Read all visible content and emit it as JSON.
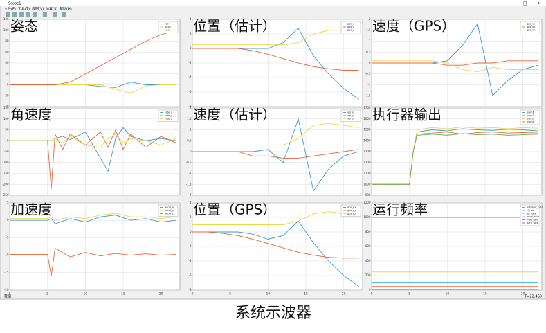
{
  "window": {
    "title": "Scope1",
    "menu": [
      "文件(F)",
      "工具(T)",
      "视图(V)",
      "仿真(S)",
      "帮助(H)"
    ],
    "status_left": "就绪",
    "status_right": "T=22.469"
  },
  "caption": "系统示波器",
  "chart_data": [
    {
      "type": "line",
      "title": "姿态",
      "x": [
        0,
        2,
        4,
        6,
        8,
        10,
        12,
        14,
        16,
        18,
        20,
        22
      ],
      "xlim": [
        0,
        22.5
      ],
      "xticks": [
        0,
        5,
        10,
        15,
        20
      ],
      "ylim": [
        -40,
        120
      ],
      "yticks": [
        -40,
        -20,
        0,
        20,
        40,
        60,
        80,
        100,
        120
      ],
      "grid": true,
      "series": [
        {
          "name": "roll",
          "color": "#3a9ad9",
          "values": [
            0,
            0,
            0,
            0,
            0,
            0,
            -3,
            -5,
            5,
            0,
            0,
            0
          ]
        },
        {
          "name": "pitch",
          "color": "#e8d94a",
          "values": [
            0,
            0,
            0,
            0,
            0,
            0,
            0,
            -8,
            -15,
            -2,
            0,
            0
          ]
        },
        {
          "name": "yaw",
          "color": "#e8663a",
          "values": [
            0,
            0,
            0,
            0,
            5,
            20,
            35,
            50,
            65,
            80,
            92,
            100
          ]
        }
      ]
    },
    {
      "type": "line",
      "title": "位置（估计）",
      "x": [
        0,
        2,
        4,
        6,
        8,
        10,
        12,
        14,
        16,
        18,
        20,
        22
      ],
      "xlim": [
        0,
        22.5
      ],
      "xticks": [
        0,
        5,
        10,
        15,
        20
      ],
      "ylim": [
        -8,
        4
      ],
      "yticks": [
        -8,
        -6,
        -4,
        -2,
        0,
        2,
        4
      ],
      "grid": true,
      "series": [
        {
          "name": "pos_x",
          "color": "#3a9ad9",
          "values": [
            0,
            0,
            0,
            0,
            0,
            0,
            0.8,
            2.8,
            -1,
            -3.5,
            -5.5,
            -7
          ]
        },
        {
          "name": "pos_y",
          "color": "#e8663a",
          "values": [
            0,
            0,
            0,
            0,
            -0.3,
            -0.8,
            -1.4,
            -2,
            -2.5,
            -2.8,
            -3,
            -3
          ]
        },
        {
          "name": "pos_z",
          "color": "#e8d94a",
          "values": [
            0.5,
            0.5,
            0.5,
            0.5,
            0.5,
            0.5,
            0.5,
            0.8,
            2,
            2.5,
            2.5,
            2.5
          ]
        }
      ]
    },
    {
      "type": "line",
      "title": "速度（GPS）",
      "x": [
        0,
        2,
        4,
        6,
        8,
        10,
        12,
        14,
        16,
        18,
        20,
        22
      ],
      "xlim": [
        0,
        22.5
      ],
      "xticks": [
        0,
        5,
        10,
        15,
        20
      ],
      "ylim": [
        -2,
        2
      ],
      "yticks": [
        -2,
        -1.5,
        -1,
        -0.5,
        0,
        0.5,
        1,
        1.5,
        2
      ],
      "grid": true,
      "series": [
        {
          "name": "gps_vx",
          "color": "#3a9ad9",
          "values": [
            0,
            0,
            0,
            0,
            0,
            0.1,
            0.8,
            1.8,
            -1.5,
            -0.8,
            -0.3,
            -0.1
          ]
        },
        {
          "name": "gps_vy",
          "color": "#e8663a",
          "values": [
            0,
            0,
            0,
            0,
            0,
            -0.1,
            -0.1,
            0,
            0,
            0.1,
            0.1,
            0.1
          ]
        },
        {
          "name": "gps_vz",
          "color": "#e8d94a",
          "values": [
            0.1,
            0.1,
            0.1,
            0.1,
            0.1,
            0,
            -0.3,
            -0.4,
            -0.2,
            -0.3,
            -0.3,
            -0.3
          ]
        }
      ]
    },
    {
      "type": "line",
      "title": "角速度",
      "x": [
        0,
        5,
        5.5,
        6,
        7,
        8,
        10,
        12,
        13,
        14,
        15,
        16,
        18,
        20,
        22
      ],
      "xlim": [
        0,
        22.5
      ],
      "xticks": [
        0,
        5,
        10,
        15,
        20
      ],
      "ylim": [
        -250,
        150
      ],
      "yticks": [
        -250,
        -200,
        -150,
        -100,
        -50,
        0,
        50,
        100,
        150
      ],
      "grid": true,
      "series": [
        {
          "name": "rate_x",
          "color": "#3a9ad9",
          "values": [
            0,
            0,
            0,
            10,
            20,
            5,
            40,
            -80,
            -140,
            10,
            60,
            20,
            0,
            10,
            0
          ]
        },
        {
          "name": "rate_y",
          "color": "#e8663a",
          "values": [
            0,
            0,
            -220,
            30,
            -40,
            30,
            -20,
            40,
            -30,
            50,
            -40,
            30,
            -30,
            20,
            -10
          ]
        },
        {
          "name": "rate_z",
          "color": "#e8d94a",
          "values": [
            0,
            0,
            0,
            10,
            -10,
            20,
            -20,
            -30,
            10,
            30,
            -10,
            10,
            0,
            -20,
            10
          ]
        }
      ]
    },
    {
      "type": "line",
      "title": "速度（估计）",
      "x": [
        0,
        2,
        4,
        6,
        8,
        10,
        12,
        14,
        16,
        18,
        20,
        22
      ],
      "xlim": [
        0,
        22.5
      ],
      "xticks": [
        0,
        5,
        10,
        15,
        20
      ],
      "ylim": [
        -2,
        2
      ],
      "yticks": [
        -2,
        -1.5,
        -1,
        -0.5,
        0,
        0.5,
        1,
        1.5,
        2
      ],
      "grid": true,
      "series": [
        {
          "name": "vel_x",
          "color": "#3a9ad9",
          "values": [
            0,
            0,
            0,
            0,
            0,
            0.1,
            -0.5,
            1.5,
            -1.8,
            -0.8,
            -0.2,
            0
          ]
        },
        {
          "name": "vel_y",
          "color": "#e8663a",
          "values": [
            0,
            0,
            0,
            0,
            -0.2,
            -0.2,
            -0.3,
            -0.3,
            -0.2,
            -0.1,
            0,
            0.1
          ]
        },
        {
          "name": "vel_z",
          "color": "#e8d94a",
          "values": [
            0.3,
            0.3,
            0.3,
            0.3,
            0.3,
            0.3,
            0.3,
            0.6,
            1.2,
            1.3,
            1.2,
            1.1
          ]
        }
      ]
    },
    {
      "type": "line",
      "title": "执行器输出",
      "x": [
        0,
        4,
        5,
        5.5,
        6,
        8,
        10,
        12,
        14,
        16,
        18,
        20,
        22
      ],
      "xlim": [
        0,
        22.5
      ],
      "xticks": [
        0,
        5,
        10,
        15,
        20
      ],
      "ylim": [
        900,
        1700
      ],
      "yticks": [
        900,
        1000,
        1100,
        1200,
        1300,
        1400,
        1500,
        1600,
        1700
      ],
      "grid": true,
      "series": [
        {
          "name": "pwm1",
          "color": "#3a9ad9",
          "values": [
            1000,
            1000,
            1000,
            1300,
            1480,
            1500,
            1490,
            1510,
            1500,
            1495,
            1505,
            1500,
            1490
          ]
        },
        {
          "name": "pwm2",
          "color": "#e8663a",
          "values": [
            1000,
            1000,
            1000,
            1300,
            1460,
            1470,
            1480,
            1460,
            1475,
            1480,
            1470,
            1475,
            1470
          ]
        },
        {
          "name": "pwm3",
          "color": "#e8d94a",
          "values": [
            1000,
            1000,
            1000,
            1300,
            1500,
            1520,
            1510,
            1525,
            1515,
            1520,
            1510,
            1520,
            1515
          ]
        },
        {
          "name": "pwm4",
          "color": "#6ab04c",
          "values": [
            1000,
            1000,
            1000,
            1300,
            1450,
            1460,
            1450,
            1465,
            1455,
            1460,
            1450,
            1455,
            1460
          ]
        }
      ]
    },
    {
      "type": "line",
      "title": "加速度",
      "x": [
        0,
        2,
        4,
        5,
        5.5,
        6,
        8,
        10,
        12,
        14,
        16,
        18,
        20,
        22
      ],
      "xlim": [
        0,
        22.5
      ],
      "xticks": [
        0,
        5,
        10,
        15,
        20
      ],
      "ylim": [
        -20,
        5
      ],
      "yticks": [
        -20,
        -15,
        -10,
        -5,
        0,
        5
      ],
      "grid": true,
      "series": [
        {
          "name": "accel_x",
          "color": "#3a9ad9",
          "values": [
            0,
            0,
            0,
            0,
            0.5,
            -1,
            0.5,
            -0.5,
            1,
            1.5,
            0,
            0.5,
            -0.5,
            0
          ]
        },
        {
          "name": "accel_y",
          "color": "#e8d94a",
          "values": [
            0.5,
            0.5,
            0.5,
            0.5,
            1,
            0,
            1,
            0.5,
            1.5,
            2,
            1,
            1,
            0.5,
            1
          ]
        },
        {
          "name": "accel_z",
          "color": "#e8663a",
          "values": [
            -9.8,
            -9.8,
            -9.8,
            -9.8,
            -16,
            -8,
            -10.5,
            -9.2,
            -10.2,
            -9.5,
            -10,
            -9.6,
            -10,
            -9.8
          ]
        }
      ]
    },
    {
      "type": "line",
      "title": "位置（GPS）",
      "x": [
        0,
        2,
        4,
        6,
        8,
        10,
        12,
        14,
        16,
        18,
        20,
        22
      ],
      "xlim": [
        0,
        22.5
      ],
      "xticks": [
        0,
        5,
        10,
        15,
        20
      ],
      "ylim": [
        -8,
        4
      ],
      "yticks": [
        -8,
        -6,
        -4,
        -2,
        0,
        2,
        4
      ],
      "grid": true,
      "series": [
        {
          "name": "gps_px",
          "color": "#3a9ad9",
          "values": [
            0,
            0,
            0,
            0,
            -0.3,
            -1,
            -0.5,
            1.5,
            -1.5,
            -4,
            -6,
            -7.5
          ]
        },
        {
          "name": "gps_py",
          "color": "#e8663a",
          "values": [
            0,
            0,
            -0.2,
            -0.5,
            -1,
            -1.6,
            -2.2,
            -2.8,
            -3.2,
            -3.5,
            -3.6,
            -3.6
          ]
        },
        {
          "name": "gps_pz",
          "color": "#e8d94a",
          "values": [
            1,
            1,
            1,
            1,
            1,
            1,
            1,
            1.5,
            2.5,
            2.8,
            2.5,
            2.5
          ]
        }
      ]
    },
    {
      "type": "line",
      "title": "运行频率",
      "x": [
        0,
        22
      ],
      "xlim": [
        0,
        22.5
      ],
      "xticks": [
        0,
        5,
        10,
        15,
        20
      ],
      "ylim": [
        0,
        1200
      ],
      "yticks": [
        0,
        200,
        400,
        600,
        800,
        1000,
        1200
      ],
      "grid": true,
      "series": [
        {
          "name": "actuator_rate",
          "color": "#6ab04c",
          "values": [
            1000,
            1000
          ]
        },
        {
          "name": "rf_rate",
          "color": "#3a9ad9",
          "values": [
            1000,
            1000
          ]
        },
        {
          "name": "ipc_rate",
          "color": "#e8d94a",
          "values": [
            250,
            250
          ]
        },
        {
          "name": "accel_rate",
          "color": "#4dbeee",
          "values": [
            100,
            100
          ]
        },
        {
          "name": "mag_rate",
          "color": "#e8663a",
          "values": [
            50,
            50
          ]
        },
        {
          "name": "baro_rate",
          "color": "#9b59b6",
          "values": [
            10,
            10
          ]
        }
      ]
    }
  ]
}
